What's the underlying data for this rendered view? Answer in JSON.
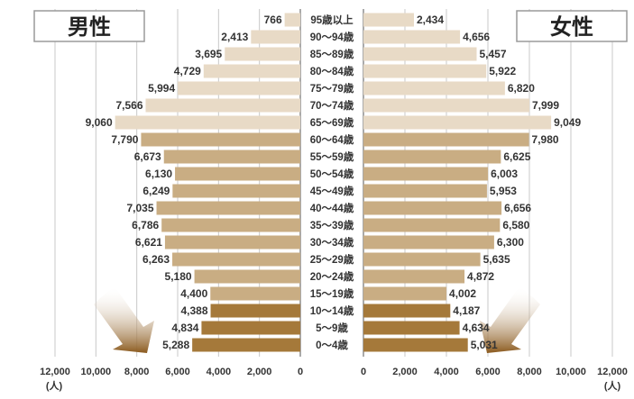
{
  "chart_data": {
    "type": "bar",
    "orientation": "horizontal-population-pyramid",
    "categories": [
      "95歳以上",
      "90〜94歳",
      "85〜89歳",
      "80〜84歳",
      "75〜79歳",
      "70〜74歳",
      "65〜69歳",
      "60〜64歳",
      "55〜59歳",
      "50〜54歳",
      "45〜49歳",
      "40〜44歳",
      "35〜39歳",
      "30〜34歳",
      "25〜29歳",
      "20〜24歳",
      "15〜19歳",
      "10〜14歳",
      "5〜9歳",
      "0〜4歳"
    ],
    "series": [
      {
        "name": "男性",
        "values": [
          766,
          2413,
          3695,
          4729,
          5994,
          7566,
          9060,
          7790,
          6673,
          6130,
          6249,
          7035,
          6786,
          6621,
          6263,
          5180,
          4400,
          4388,
          4834,
          5288
        ]
      },
      {
        "name": "女性",
        "values": [
          2434,
          4656,
          5457,
          5922,
          6820,
          7999,
          9049,
          7980,
          6625,
          6003,
          5953,
          6656,
          6580,
          6300,
          5635,
          4872,
          4002,
          4187,
          4634,
          5031
        ]
      }
    ],
    "value_labels": {
      "male": [
        "766",
        "2,413",
        "3,695",
        "4,729",
        "5,994",
        "7,566",
        "9,060",
        "7,790",
        "6,673",
        "6,130",
        "6,249",
        "7,035",
        "6,786",
        "6,621",
        "6,263",
        "5,180",
        "4,400",
        "4,388",
        "4,834",
        "5,288"
      ],
      "female": [
        "2,434",
        "4,656",
        "5,457",
        "5,922",
        "6,820",
        "7,999",
        "9,049",
        "7,980",
        "6,625",
        "6,003",
        "5,953",
        "6,656",
        "6,580",
        "6,300",
        "5,635",
        "4,872",
        "4,002",
        "4,187",
        "4,634",
        "5,031"
      ]
    },
    "xlim": [
      0,
      12000
    ],
    "ticks": [
      0,
      2000,
      4000,
      6000,
      8000,
      10000,
      12000
    ],
    "tick_labels": [
      "0",
      "2,000",
      "4,000",
      "6,000",
      "8,000",
      "10,000",
      "12,000"
    ],
    "unit_label": "(人)",
    "grid": true,
    "bar_colors": {
      "elderly": "#e8dac6",
      "working": "#c9ad83",
      "youth": "#a5793a"
    },
    "color_group_boundaries": {
      "elderly_last_index": 6,
      "working_last_index": 16
    }
  },
  "labels": {
    "male": "男性",
    "female": "女性"
  }
}
